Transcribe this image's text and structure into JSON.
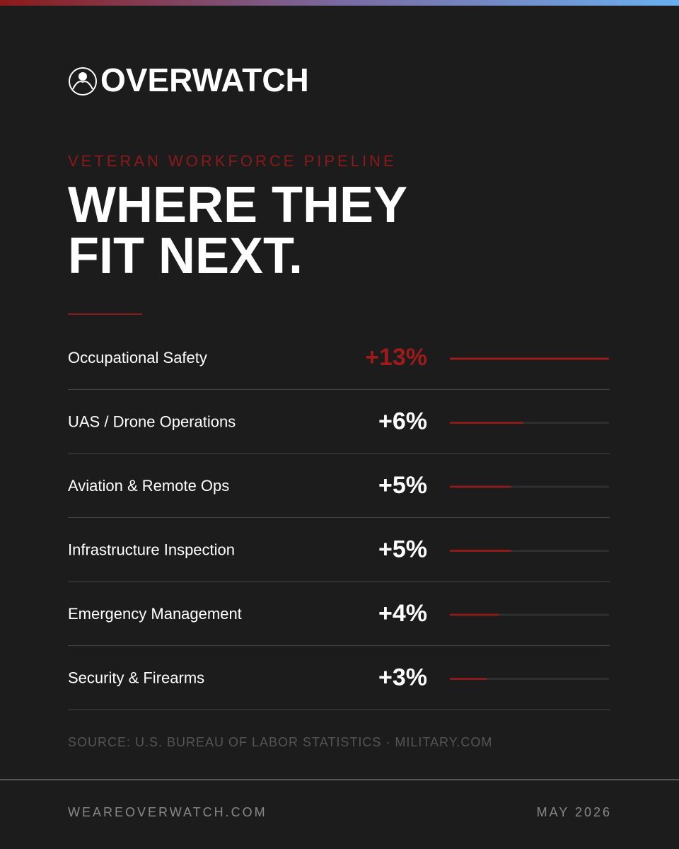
{
  "brand": "OVERWATCH",
  "chart_data": {
    "type": "bar",
    "subtitle": "VETERAN WORKFORCE PIPELINE",
    "title": [
      "WHERE THEY",
      "FIT NEXT."
    ],
    "categories": [
      "Occupational Safety",
      "UAS / Drone Operations",
      "Aviation & Remote Ops",
      "Infrastructure Inspection",
      "Emergency Management",
      "Security & Firearms"
    ],
    "values": [
      13,
      6,
      5,
      5,
      4,
      3
    ],
    "value_labels": [
      "+13%",
      "+6%",
      "+5%",
      "+5%",
      "+4%",
      "+3%"
    ],
    "colors": [
      "#9e1b1b",
      "#8b1a1a",
      "#8b1a1a",
      "#8b1a1a",
      "#8b1a1a",
      "#8b1a1a"
    ],
    "label_colors": [
      "#9e1b1b",
      "#ffffff",
      "#ffffff",
      "#ffffff",
      "#ffffff",
      "#ffffff"
    ],
    "xlim": [
      0,
      13
    ],
    "source": "SOURCE: U.S. BUREAU OF LABOR STATISTICS · MILITARY.COM"
  },
  "footer": {
    "website": "WEAREOVERWATCH.COM",
    "date": "MAY 2026"
  }
}
